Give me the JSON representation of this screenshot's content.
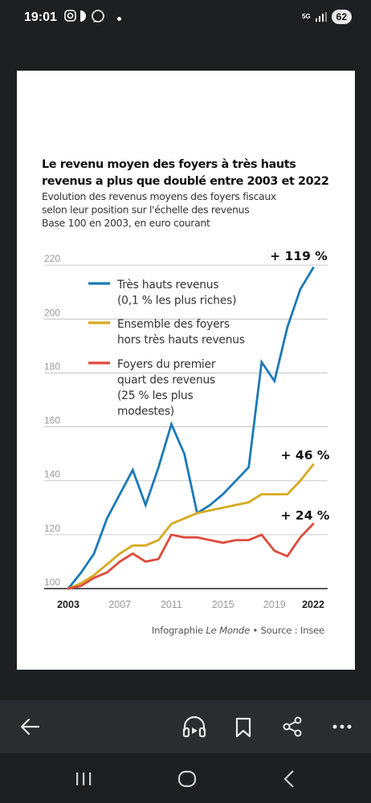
{
  "status_bar": {
    "time": "19:01",
    "network": "5G",
    "battery": "62"
  },
  "chart_data": {
    "type": "line",
    "title_lines": [
      "Le revenu moyen des foyers à très hauts",
      "revenus a plus que doublé entre 2003 et 2022"
    ],
    "subtitle_lines": [
      "Evolution des revenus moyens des foyers fiscaux",
      "selon leur position sur l'échelle des revenus",
      "Base 100 en 2003, en euro courant"
    ],
    "y_ticks": [
      100,
      120,
      140,
      160,
      180,
      200,
      220
    ],
    "y_tick_labels": [
      "100",
      "120",
      "140",
      "160",
      "180",
      "200",
      "220"
    ],
    "ylim": [
      100,
      222
    ],
    "xlim": [
      2003,
      2022
    ],
    "x_ticks": [
      2003,
      2007,
      2011,
      2015,
      2019,
      2022
    ],
    "x_tick_labels": [
      "2003",
      "2007",
      "2011",
      "2015",
      "2019",
      "2022"
    ],
    "grid": true,
    "legend_position": "top-left",
    "series": [
      {
        "name_lines": [
          "Très hauts revenus",
          "(0,1 % les plus riches)"
        ],
        "color": "#1b7ab7",
        "x": [
          2003,
          2004,
          2005,
          2006,
          2007,
          2008,
          2009,
          2010,
          2011,
          2012,
          2013,
          2014,
          2015,
          2016,
          2017,
          2018,
          2019,
          2020,
          2021,
          2022
        ],
        "values": [
          100,
          106,
          113,
          126,
          135,
          144,
          131,
          145,
          161,
          150,
          128,
          131,
          135,
          140,
          145,
          184,
          177,
          197,
          211,
          219
        ],
        "end_label": "+ 119 %"
      },
      {
        "name_lines": [
          "Ensemble des foyers",
          "hors très hauts revenus"
        ],
        "color": "#d6a91f",
        "x": [
          2003,
          2004,
          2005,
          2006,
          2007,
          2008,
          2009,
          2010,
          2011,
          2012,
          2013,
          2014,
          2015,
          2016,
          2017,
          2018,
          2019,
          2020,
          2021,
          2022
        ],
        "values": [
          100,
          102,
          105,
          109,
          113,
          116,
          116,
          118,
          124,
          126,
          128,
          129,
          130,
          131,
          132,
          135,
          135,
          135,
          140,
          146
        ],
        "end_label": "+ 46 %"
      },
      {
        "name_lines": [
          "Foyers du premier",
          "quart des revenus",
          "(25 % les plus",
          "modestes)"
        ],
        "color": "#dd4a3c",
        "x": [
          2003,
          2004,
          2005,
          2006,
          2007,
          2008,
          2009,
          2010,
          2011,
          2012,
          2013,
          2014,
          2015,
          2016,
          2017,
          2018,
          2019,
          2020,
          2021,
          2022
        ],
        "values": [
          100,
          101,
          104,
          106,
          110,
          113,
          110,
          111,
          120,
          119,
          119,
          118,
          117,
          118,
          118,
          120,
          114,
          112,
          119,
          124
        ],
        "end_label": "+ 24 %"
      }
    ],
    "source_prefix": "Infographie ",
    "source_italic": "Le Monde",
    "source_suffix": " • Source : Insee"
  },
  "icons": {
    "back": "back-arrow-icon",
    "listen": "headphones-icon",
    "bookmark": "bookmark-icon",
    "share": "share-icon",
    "more": "more-icon"
  }
}
